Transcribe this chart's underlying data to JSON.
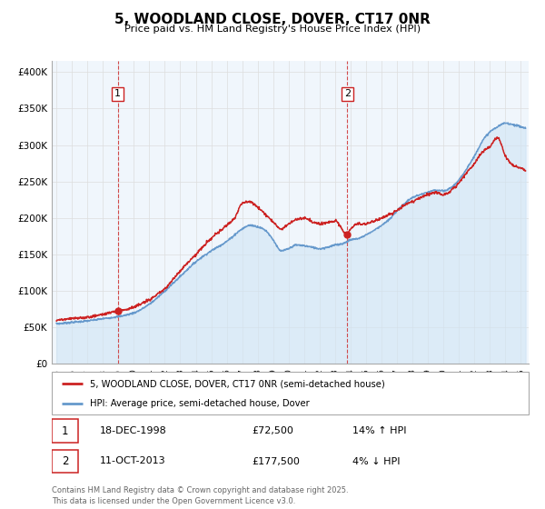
{
  "title": "5, WOODLAND CLOSE, DOVER, CT17 0NR",
  "subtitle": "Price paid vs. HM Land Registry's House Price Index (HPI)",
  "ylabel_ticks": [
    "£0",
    "£50K",
    "£100K",
    "£150K",
    "£200K",
    "£250K",
    "£300K",
    "£350K",
    "£400K"
  ],
  "ytick_vals": [
    0,
    50000,
    100000,
    150000,
    200000,
    250000,
    300000,
    350000,
    400000
  ],
  "ylim": [
    0,
    415000
  ],
  "xlim_start": 1994.7,
  "xlim_end": 2025.5,
  "xtick_years": [
    1995,
    1996,
    1997,
    1998,
    1999,
    2000,
    2001,
    2002,
    2003,
    2004,
    2005,
    2006,
    2007,
    2008,
    2009,
    2010,
    2011,
    2012,
    2013,
    2014,
    2015,
    2016,
    2017,
    2018,
    2019,
    2020,
    2021,
    2022,
    2023,
    2024,
    2025
  ],
  "legend_line1": "5, WOODLAND CLOSE, DOVER, CT17 0NR (semi-detached house)",
  "legend_line2": "HPI: Average price, semi-detached house, Dover",
  "sale1_date": "18-DEC-1998",
  "sale1_price": "£72,500",
  "sale1_hpi": "14% ↑ HPI",
  "sale1_x": 1998.96,
  "sale1_y": 72500,
  "sale2_date": "11-OCT-2013",
  "sale2_price": "£177,500",
  "sale2_hpi": "4% ↓ HPI",
  "sale2_x": 2013.78,
  "sale2_y": 177500,
  "red_color": "#cc2222",
  "blue_color": "#6699cc",
  "blue_fill": "#d0e4f5",
  "grid_color": "#dddddd",
  "plot_bg": "#f0f6fc",
  "footer_text": "Contains HM Land Registry data © Crown copyright and database right 2025.\nThis data is licensed under the Open Government Licence v3.0.",
  "hpi_anchors_x": [
    1995.0,
    1996.0,
    1997.0,
    1998.0,
    1999.0,
    2000.0,
    2001.0,
    2002.0,
    2003.0,
    2004.0,
    2005.0,
    2006.0,
    2007.0,
    2007.5,
    2008.0,
    2008.5,
    2009.0,
    2009.5,
    2010.0,
    2010.5,
    2011.0,
    2011.5,
    2012.0,
    2012.5,
    2013.0,
    2013.5,
    2014.0,
    2014.5,
    2015.0,
    2015.5,
    2016.0,
    2016.5,
    2017.0,
    2017.5,
    2018.0,
    2018.5,
    2019.0,
    2019.5,
    2020.0,
    2020.5,
    2021.0,
    2021.5,
    2022.0,
    2022.5,
    2023.0,
    2023.5,
    2024.0,
    2024.5,
    2025.0,
    2025.3
  ],
  "hpi_anchors_y": [
    55000,
    57000,
    59000,
    62000,
    65000,
    70000,
    82000,
    100000,
    120000,
    140000,
    155000,
    168000,
    185000,
    190000,
    188000,
    183000,
    170000,
    155000,
    158000,
    163000,
    162000,
    160000,
    158000,
    160000,
    163000,
    165000,
    170000,
    172000,
    177000,
    183000,
    190000,
    198000,
    210000,
    220000,
    228000,
    232000,
    235000,
    238000,
    237000,
    242000,
    252000,
    268000,
    285000,
    305000,
    318000,
    325000,
    330000,
    328000,
    325000,
    323000
  ],
  "red_anchors_x": [
    1995.0,
    1996.0,
    1997.0,
    1998.0,
    1998.96,
    1999.5,
    2000.0,
    2001.0,
    2002.0,
    2003.0,
    2004.0,
    2005.0,
    2006.0,
    2006.5,
    2007.0,
    2007.5,
    2008.0,
    2008.5,
    2009.0,
    2009.5,
    2010.0,
    2010.5,
    2011.0,
    2011.5,
    2012.0,
    2012.5,
    2013.0,
    2013.78,
    2014.0,
    2014.5,
    2015.0,
    2015.5,
    2016.0,
    2016.5,
    2017.0,
    2017.5,
    2018.0,
    2018.5,
    2019.0,
    2019.5,
    2020.0,
    2020.5,
    2021.0,
    2021.5,
    2022.0,
    2022.5,
    2023.0,
    2023.5,
    2024.0,
    2024.5,
    2025.0,
    2025.3
  ],
  "red_anchors_y": [
    60000,
    62000,
    64000,
    68000,
    72500,
    75000,
    78000,
    88000,
    103000,
    128000,
    150000,
    172000,
    190000,
    200000,
    220000,
    222000,
    215000,
    205000,
    195000,
    185000,
    192000,
    198000,
    200000,
    195000,
    192000,
    194000,
    196000,
    177500,
    185000,
    192000,
    192000,
    196000,
    200000,
    205000,
    210000,
    218000,
    222000,
    228000,
    232000,
    235000,
    232000,
    238000,
    248000,
    262000,
    275000,
    290000,
    298000,
    310000,
    285000,
    272000,
    268000,
    265000
  ]
}
